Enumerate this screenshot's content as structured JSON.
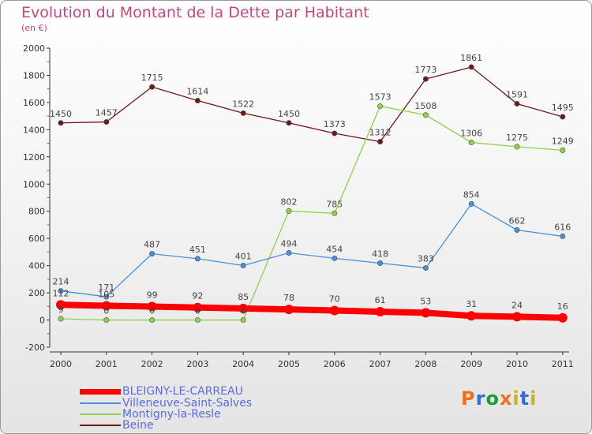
{
  "title": "Evolution du Montant de la Dette par Habitant",
  "subtitle": "(en €)",
  "logo": {
    "text": "Proxiti",
    "colors": [
      "#e8731a",
      "#2f6fd0",
      "#1e9a3a",
      "#e8731a",
      "#c9b21a",
      "#2f6fd0",
      "#c9b21a"
    ]
  },
  "chart_data": {
    "type": "line",
    "x": [
      "2000",
      "2001",
      "2002",
      "2003",
      "2004",
      "2005",
      "2006",
      "2007",
      "2008",
      "2009",
      "2010",
      "2011"
    ],
    "ylim": [
      -200,
      2000
    ],
    "yticks": [
      "-200",
      "0",
      "200",
      "400",
      "600",
      "800",
      "1000",
      "1200",
      "1400",
      "1600",
      "1800",
      "2000"
    ],
    "grid": false,
    "legend_position": "bottom-left",
    "series": [
      {
        "name": "BLEIGNY-LE-CARREAU",
        "color": "#ff0000",
        "values": [
          112,
          105,
          99,
          92,
          85,
          78,
          70,
          61,
          53,
          31,
          24,
          16
        ],
        "labels": [
          "112",
          "105",
          "99",
          "92",
          "85",
          "78",
          "70",
          "61",
          "53",
          "31",
          "24",
          "16"
        ]
      },
      {
        "name": "Villeneuve-Saint-Salves",
        "color": "#4a90d9",
        "values": [
          214,
          171,
          487,
          451,
          401,
          494,
          454,
          418,
          383,
          854,
          662,
          616
        ],
        "labels": [
          "214",
          "171",
          "487",
          "451",
          "401",
          "494",
          "454",
          "418",
          "383",
          "854",
          "662",
          "616"
        ]
      },
      {
        "name": "Montigny-la-Resle",
        "color": "#8fd24a",
        "values": [
          9,
          0,
          0,
          0,
          0,
          802,
          785,
          1573,
          1508,
          1306,
          1275,
          1249
        ],
        "labels": [
          "9",
          "0",
          "0",
          "0",
          "0",
          "802",
          "785",
          "1573",
          "1508",
          "1306",
          "1275",
          "1249"
        ]
      },
      {
        "name": "Beine",
        "color": "#6b1a1a",
        "values": [
          1450,
          1457,
          1715,
          1614,
          1522,
          1450,
          1373,
          1312,
          1773,
          1861,
          1591,
          1495
        ],
        "labels": [
          "1450",
          "1457",
          "1715",
          "1614",
          "1522",
          "1450",
          "1373",
          "1312",
          "1773",
          "1861",
          "1591",
          "1495"
        ]
      }
    ]
  }
}
